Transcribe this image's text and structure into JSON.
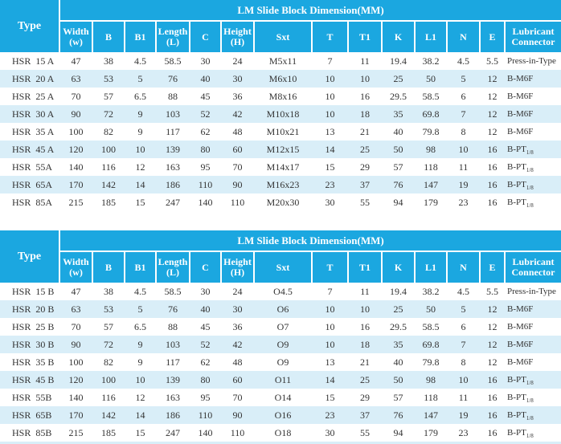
{
  "colors": {
    "header_blue": "#1ba7e0",
    "row_alt_blue": "#d9eef8",
    "header_text": "#ffffff",
    "data_text": "#333333"
  },
  "table_header": {
    "type_label": "Type",
    "band_title": "LM Slide Block Dimension(MM)",
    "columns": [
      "Width\n(w)",
      "B",
      "B1",
      "Length\n(L)",
      "C",
      "Height\n(H)",
      "Sxt",
      "T",
      "T1",
      "K",
      "L1",
      "N",
      "E",
      "Lubricant\nConnector"
    ]
  },
  "tables": [
    {
      "rows": [
        {
          "type": "HSR  15 A",
          "values": [
            "47",
            "38",
            "4.5",
            "58.5",
            "30",
            "24",
            "M5x11",
            "7",
            "11",
            "19.4",
            "38.2",
            "4.5",
            "5.5"
          ],
          "lubricant": "Press-in-Type",
          "lubricant_sub": ""
        },
        {
          "type": "HSR  20 A",
          "values": [
            "63",
            "53",
            "5",
            "76",
            "40",
            "30",
            "M6x10",
            "10",
            "10",
            "25",
            "50",
            "5",
            "12"
          ],
          "lubricant": "B-M6F",
          "lubricant_sub": ""
        },
        {
          "type": "HSR  25 A",
          "values": [
            "70",
            "57",
            "6.5",
            "88",
            "45",
            "36",
            "M8x16",
            "10",
            "16",
            "29.5",
            "58.5",
            "6",
            "12"
          ],
          "lubricant": "B-M6F",
          "lubricant_sub": ""
        },
        {
          "type": "HSR  30 A",
          "values": [
            "90",
            "72",
            "9",
            "103",
            "52",
            "42",
            "M10x18",
            "10",
            "18",
            "35",
            "69.8",
            "7",
            "12"
          ],
          "lubricant": "B-M6F",
          "lubricant_sub": ""
        },
        {
          "type": "HSR  35 A",
          "values": [
            "100",
            "82",
            "9",
            "117",
            "62",
            "48",
            "M10x21",
            "13",
            "21",
            "40",
            "79.8",
            "8",
            "12"
          ],
          "lubricant": "B-M6F",
          "lubricant_sub": ""
        },
        {
          "type": "HSR  45 A",
          "values": [
            "120",
            "100",
            "10",
            "139",
            "80",
            "60",
            "M12x15",
            "14",
            "25",
            "50",
            "98",
            "10",
            "16"
          ],
          "lubricant": "B-PT",
          "lubricant_sub": "1/8"
        },
        {
          "type": "HSR  55A",
          "values": [
            "140",
            "116",
            "12",
            "163",
            "95",
            "70",
            "M14x17",
            "15",
            "29",
            "57",
            "118",
            "11",
            "16"
          ],
          "lubricant": "B-PT",
          "lubricant_sub": "1/8"
        },
        {
          "type": "HSR  65A",
          "values": [
            "170",
            "142",
            "14",
            "186",
            "110",
            "90",
            "M16x23",
            "23",
            "37",
            "76",
            "147",
            "19",
            "16"
          ],
          "lubricant": "B-PT",
          "lubricant_sub": "1/8"
        },
        {
          "type": "HSR  85A",
          "values": [
            "215",
            "185",
            "15",
            "247",
            "140",
            "110",
            "M20x30",
            "30",
            "55",
            "94",
            "179",
            "23",
            "16"
          ],
          "lubricant": "B-PT",
          "lubricant_sub": "1/8"
        }
      ]
    },
    {
      "rows": [
        {
          "type": "HSR  15 B",
          "values": [
            "47",
            "38",
            "4.5",
            "58.5",
            "30",
            "24",
            "O4.5",
            "7",
            "11",
            "19.4",
            "38.2",
            "4.5",
            "5.5"
          ],
          "lubricant": "Press-in-Type",
          "lubricant_sub": ""
        },
        {
          "type": "HSR  20 B",
          "values": [
            "63",
            "53",
            "5",
            "76",
            "40",
            "30",
            "O6",
            "10",
            "10",
            "25",
            "50",
            "5",
            "12"
          ],
          "lubricant": "B-M6F",
          "lubricant_sub": ""
        },
        {
          "type": "HSR  25 B",
          "values": [
            "70",
            "57",
            "6.5",
            "88",
            "45",
            "36",
            "O7",
            "10",
            "16",
            "29.5",
            "58.5",
            "6",
            "12"
          ],
          "lubricant": "B-M6F",
          "lubricant_sub": ""
        },
        {
          "type": "HSR  30 B",
          "values": [
            "90",
            "72",
            "9",
            "103",
            "52",
            "42",
            "O9",
            "10",
            "18",
            "35",
            "69.8",
            "7",
            "12"
          ],
          "lubricant": "B-M6F",
          "lubricant_sub": ""
        },
        {
          "type": "HSR  35 B",
          "values": [
            "100",
            "82",
            "9",
            "117",
            "62",
            "48",
            "O9",
            "13",
            "21",
            "40",
            "79.8",
            "8",
            "12"
          ],
          "lubricant": "B-M6F",
          "lubricant_sub": ""
        },
        {
          "type": "HSR  45 B",
          "values": [
            "120",
            "100",
            "10",
            "139",
            "80",
            "60",
            "O11",
            "14",
            "25",
            "50",
            "98",
            "10",
            "16"
          ],
          "lubricant": "B-PT",
          "lubricant_sub": "1/8"
        },
        {
          "type": "HSR  55B",
          "values": [
            "140",
            "116",
            "12",
            "163",
            "95",
            "70",
            "O14",
            "15",
            "29",
            "57",
            "118",
            "11",
            "16"
          ],
          "lubricant": "B-PT",
          "lubricant_sub": "1/8"
        },
        {
          "type": "HSR  65B",
          "values": [
            "170",
            "142",
            "14",
            "186",
            "110",
            "90",
            "O16",
            "23",
            "37",
            "76",
            "147",
            "19",
            "16"
          ],
          "lubricant": "B-PT",
          "lubricant_sub": "1/8"
        },
        {
          "type": "HSR  85B",
          "values": [
            "215",
            "185",
            "15",
            "247",
            "140",
            "110",
            "O18",
            "30",
            "55",
            "94",
            "179",
            "23",
            "16"
          ],
          "lubricant": "B-PT",
          "lubricant_sub": "1/8"
        }
      ]
    }
  ]
}
